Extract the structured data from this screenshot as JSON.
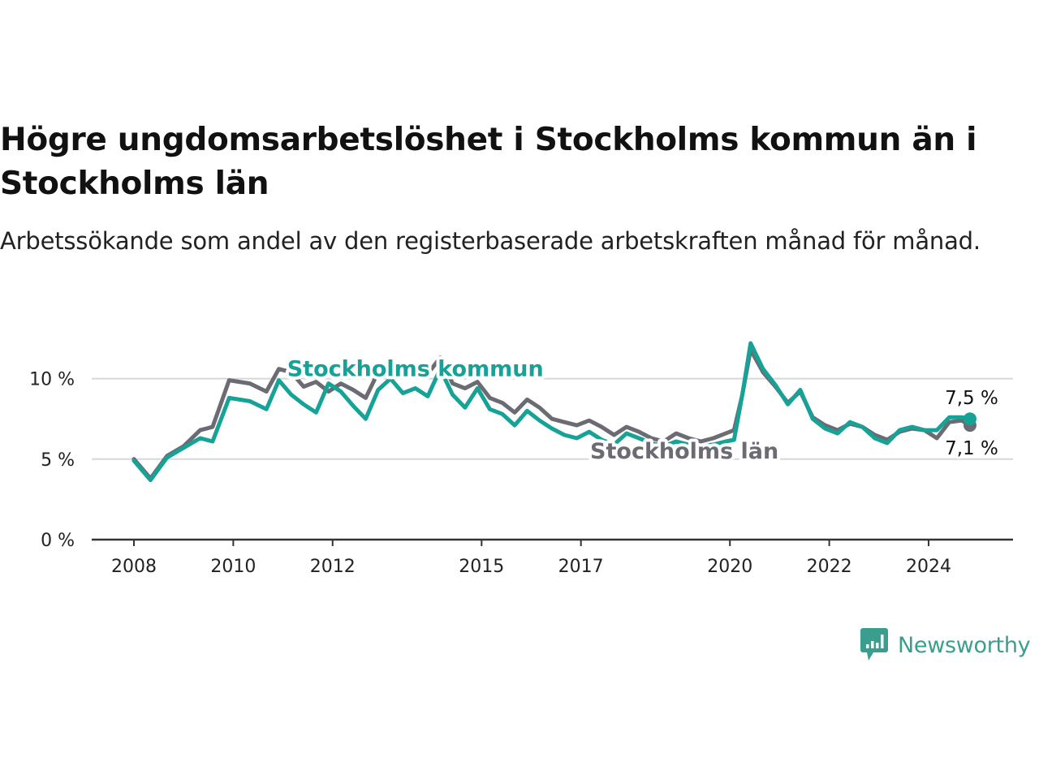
{
  "title": "Högre ungdomsarbetslöshet i Stockholms kommun än i Stockholms län",
  "subtitle": "Arbetssökande som andel av den registerbaserade arbetskraften månad för månad.",
  "brand": {
    "name": "Newsworthy",
    "color": "#3a9e8f"
  },
  "chart_data": {
    "type": "line",
    "x_axis": {
      "type": "date",
      "ticks": [
        "2008",
        "2010",
        "2012",
        "2015",
        "2017",
        "2020",
        "2022",
        "2024"
      ]
    },
    "y_axis": {
      "ticks": [
        0,
        5,
        10
      ],
      "tick_labels": [
        "0 %",
        "5 %",
        "10 %"
      ],
      "ylim": [
        0,
        12.5
      ],
      "unit": "%"
    },
    "grid": "horizontal",
    "series": [
      {
        "name": "Stockholms län",
        "color": "#6b6b73",
        "end_label": "7,1 %",
        "points": [
          [
            "2008-01",
            5.0
          ],
          [
            "2008-05",
            3.8
          ],
          [
            "2008-09",
            5.2
          ],
          [
            "2009-01",
            5.8
          ],
          [
            "2009-05",
            6.8
          ],
          [
            "2009-08",
            7.0
          ],
          [
            "2009-12",
            9.9
          ],
          [
            "2010-05",
            9.7
          ],
          [
            "2010-09",
            9.2
          ],
          [
            "2010-12",
            10.6
          ],
          [
            "2011-03",
            10.4
          ],
          [
            "2011-06",
            9.5
          ],
          [
            "2011-09",
            9.8
          ],
          [
            "2011-12",
            9.2
          ],
          [
            "2012-03",
            9.7
          ],
          [
            "2012-06",
            9.3
          ],
          [
            "2012-09",
            8.8
          ],
          [
            "2012-12",
            10.4
          ],
          [
            "2013-03",
            11.1
          ],
          [
            "2013-06",
            10.5
          ],
          [
            "2013-09",
            10.8
          ],
          [
            "2013-12",
            10.3
          ],
          [
            "2014-03",
            11.3
          ],
          [
            "2014-06",
            9.7
          ],
          [
            "2014-09",
            9.4
          ],
          [
            "2014-12",
            9.8
          ],
          [
            "2015-03",
            8.8
          ],
          [
            "2015-06",
            8.5
          ],
          [
            "2015-09",
            7.9
          ],
          [
            "2015-12",
            8.7
          ],
          [
            "2016-03",
            8.2
          ],
          [
            "2016-06",
            7.5
          ],
          [
            "2016-09",
            7.3
          ],
          [
            "2016-12",
            7.1
          ],
          [
            "2017-03",
            7.4
          ],
          [
            "2017-06",
            7.0
          ],
          [
            "2017-09",
            6.5
          ],
          [
            "2017-12",
            7.0
          ],
          [
            "2018-03",
            6.7
          ],
          [
            "2018-06",
            6.3
          ],
          [
            "2018-09",
            6.1
          ],
          [
            "2018-12",
            6.6
          ],
          [
            "2019-03",
            6.3
          ],
          [
            "2019-06",
            6.1
          ],
          [
            "2019-09",
            6.3
          ],
          [
            "2019-12",
            6.6
          ],
          [
            "2020-02",
            6.8
          ],
          [
            "2020-04",
            9.0
          ],
          [
            "2020-06",
            11.8
          ],
          [
            "2020-09",
            10.4
          ],
          [
            "2020-12",
            9.5
          ],
          [
            "2021-03",
            8.5
          ],
          [
            "2021-06",
            9.2
          ],
          [
            "2021-09",
            7.6
          ],
          [
            "2021-12",
            7.1
          ],
          [
            "2022-03",
            6.8
          ],
          [
            "2022-06",
            7.2
          ],
          [
            "2022-09",
            7.0
          ],
          [
            "2022-12",
            6.5
          ],
          [
            "2023-03",
            6.2
          ],
          [
            "2023-06",
            6.7
          ],
          [
            "2023-09",
            6.9
          ],
          [
            "2023-12",
            6.8
          ],
          [
            "2024-03",
            6.3
          ],
          [
            "2024-06",
            7.3
          ],
          [
            "2024-09",
            7.4
          ],
          [
            "2024-11",
            7.1
          ]
        ]
      },
      {
        "name": "Stockholms kommun",
        "color": "#16a296",
        "end_label": "7,5 %",
        "points": [
          [
            "2008-01",
            4.9
          ],
          [
            "2008-05",
            3.7
          ],
          [
            "2008-09",
            5.1
          ],
          [
            "2009-01",
            5.7
          ],
          [
            "2009-05",
            6.3
          ],
          [
            "2009-08",
            6.1
          ],
          [
            "2009-12",
            8.8
          ],
          [
            "2010-05",
            8.6
          ],
          [
            "2010-09",
            8.1
          ],
          [
            "2010-12",
            9.9
          ],
          [
            "2011-03",
            9.0
          ],
          [
            "2011-06",
            8.4
          ],
          [
            "2011-09",
            7.9
          ],
          [
            "2011-12",
            9.7
          ],
          [
            "2012-03",
            9.2
          ],
          [
            "2012-06",
            8.3
          ],
          [
            "2012-09",
            7.5
          ],
          [
            "2012-12",
            9.3
          ],
          [
            "2013-03",
            10.0
          ],
          [
            "2013-06",
            9.1
          ],
          [
            "2013-09",
            9.4
          ],
          [
            "2013-12",
            8.9
          ],
          [
            "2014-03",
            10.6
          ],
          [
            "2014-06",
            9.0
          ],
          [
            "2014-09",
            8.2
          ],
          [
            "2014-12",
            9.4
          ],
          [
            "2015-03",
            8.1
          ],
          [
            "2015-06",
            7.8
          ],
          [
            "2015-09",
            7.1
          ],
          [
            "2015-12",
            8.0
          ],
          [
            "2016-03",
            7.4
          ],
          [
            "2016-06",
            6.9
          ],
          [
            "2016-09",
            6.5
          ],
          [
            "2016-12",
            6.3
          ],
          [
            "2017-03",
            6.7
          ],
          [
            "2017-06",
            6.2
          ],
          [
            "2017-09",
            5.9
          ],
          [
            "2017-12",
            6.6
          ],
          [
            "2018-03",
            6.3
          ],
          [
            "2018-06",
            6.0
          ],
          [
            "2018-09",
            5.8
          ],
          [
            "2018-12",
            6.1
          ],
          [
            "2019-03",
            5.9
          ],
          [
            "2019-06",
            5.8
          ],
          [
            "2019-09",
            5.9
          ],
          [
            "2019-12",
            6.1
          ],
          [
            "2020-02",
            6.2
          ],
          [
            "2020-04",
            9.0
          ],
          [
            "2020-06",
            12.2
          ],
          [
            "2020-09",
            10.6
          ],
          [
            "2020-12",
            9.6
          ],
          [
            "2021-03",
            8.4
          ],
          [
            "2021-06",
            9.3
          ],
          [
            "2021-09",
            7.5
          ],
          [
            "2021-12",
            6.9
          ],
          [
            "2022-03",
            6.6
          ],
          [
            "2022-06",
            7.3
          ],
          [
            "2022-09",
            7.0
          ],
          [
            "2022-12",
            6.3
          ],
          [
            "2023-03",
            6.0
          ],
          [
            "2023-06",
            6.8
          ],
          [
            "2023-09",
            7.0
          ],
          [
            "2023-12",
            6.8
          ],
          [
            "2024-03",
            6.8
          ],
          [
            "2024-06",
            7.6
          ],
          [
            "2024-09",
            7.6
          ],
          [
            "2024-11",
            7.5
          ]
        ]
      }
    ],
    "annotations": [
      {
        "text": "Stockholms kommun",
        "series": "Stockholms kommun",
        "x": "2013-09",
        "y": 10.6
      },
      {
        "text": "Stockholms län",
        "series": "Stockholms län",
        "x": "2019-02",
        "y": 5.5
      }
    ]
  }
}
